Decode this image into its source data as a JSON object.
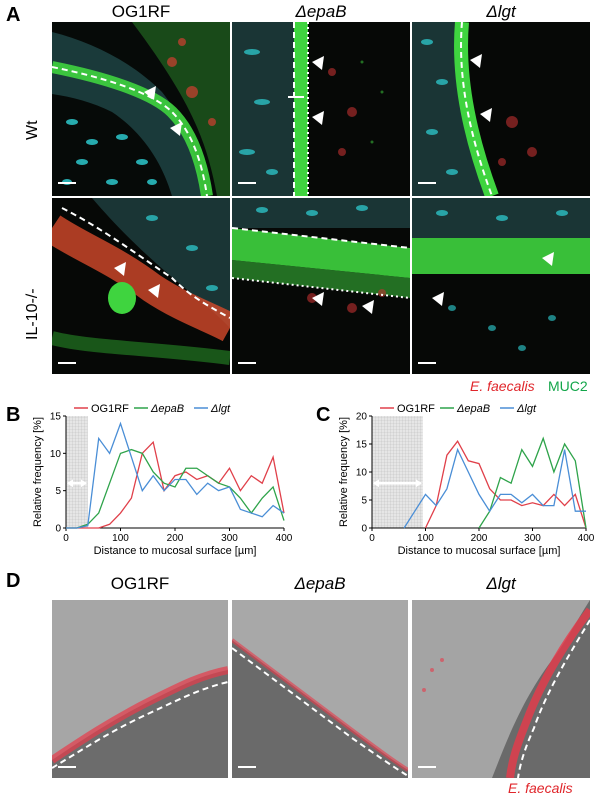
{
  "panelA": {
    "letter": "A",
    "columns": [
      "OG1RF",
      "ΔepaB",
      "Δlgt"
    ],
    "rows": [
      "Wt",
      "IL-10-/-"
    ],
    "legend": {
      "label1": "E. faecalis",
      "label2": "MUC2",
      "color1": "#e0262b",
      "color2": "#13a64a"
    }
  },
  "panelB": {
    "letter": "B"
  },
  "panelC": {
    "letter": "C"
  },
  "panelD": {
    "letter": "D",
    "columns": [
      "OG1RF",
      "ΔepaB",
      "Δlgt"
    ],
    "legend": "E. faecalis"
  },
  "chart_data": [
    {
      "type": "line",
      "xlabel": "Distance to mucosal surface [µm]",
      "ylabel": "Relative frequency [%]",
      "xlim": [
        0,
        400
      ],
      "ylim": [
        0,
        15
      ],
      "xticks": [
        0,
        100,
        200,
        300,
        400
      ],
      "yticks": [
        0,
        5,
        10,
        15
      ],
      "legend_position": "top",
      "shaded_region": [
        0,
        40
      ],
      "series": [
        {
          "name": "OG1RF",
          "color": "#e0404a",
          "x": [
            0,
            20,
            40,
            60,
            80,
            100,
            120,
            140,
            160,
            180,
            200,
            220,
            240,
            260,
            280,
            300,
            320,
            340,
            360,
            380,
            400
          ],
          "y": [
            0,
            0,
            0,
            0,
            0.5,
            2,
            4,
            10,
            11.5,
            5,
            7,
            7.5,
            6.5,
            7,
            6,
            8,
            5,
            7,
            6,
            9.5,
            2
          ]
        },
        {
          "name": "ΔepaB",
          "color": "#2ea34a",
          "x": [
            0,
            20,
            40,
            60,
            80,
            100,
            120,
            140,
            160,
            180,
            200,
            220,
            240,
            260,
            280,
            300,
            320,
            340,
            360,
            380,
            400
          ],
          "y": [
            0,
            0,
            0.5,
            2,
            6,
            10,
            10.5,
            10,
            7.5,
            6,
            5.5,
            8,
            8,
            7,
            6,
            5.5,
            4,
            2,
            4,
            5.5,
            1
          ]
        },
        {
          "name": "Δlgt",
          "color": "#4a8ed6",
          "x": [
            0,
            20,
            40,
            60,
            80,
            100,
            120,
            140,
            160,
            180,
            200,
            220,
            240,
            260,
            280,
            300,
            320,
            340,
            360,
            380,
            400
          ],
          "y": [
            0,
            0,
            0.3,
            12,
            10,
            14,
            9.5,
            5,
            7,
            5,
            6.5,
            6.5,
            4.5,
            6,
            5,
            5.5,
            2.5,
            2,
            1.5,
            3,
            2
          ]
        }
      ]
    },
    {
      "type": "line",
      "xlabel": "Distance to mucosal surface [µm]",
      "ylabel": "Relative frequency [%]",
      "xlim": [
        0,
        400
      ],
      "ylim": [
        0,
        20
      ],
      "xticks": [
        0,
        100,
        200,
        300,
        400
      ],
      "yticks": [
        0,
        5,
        10,
        15,
        20
      ],
      "legend_position": "top",
      "shaded_region": [
        0,
        95
      ],
      "series": [
        {
          "name": "OG1RF",
          "color": "#e0404a",
          "x": [
            100,
            120,
            140,
            160,
            180,
            200,
            220,
            240,
            260,
            280,
            300,
            320,
            340,
            360,
            380,
            400
          ],
          "y": [
            0,
            4,
            13,
            15.5,
            12,
            11.5,
            7,
            5,
            5,
            4,
            4.5,
            4,
            6,
            4,
            6,
            0
          ]
        },
        {
          "name": "ΔepaB",
          "color": "#2ea34a",
          "x": [
            200,
            220,
            240,
            260,
            280,
            300,
            320,
            340,
            360,
            380,
            400
          ],
          "y": [
            0,
            3,
            9,
            8,
            14,
            11,
            16,
            10,
            15,
            12,
            0
          ]
        },
        {
          "name": "Δlgt",
          "color": "#4a8ed6",
          "x": [
            60,
            80,
            100,
            120,
            140,
            160,
            180,
            200,
            220,
            240,
            260,
            280,
            300,
            320,
            340,
            360,
            380,
            400
          ],
          "y": [
            0,
            3,
            6,
            4,
            7,
            14,
            10,
            6,
            3,
            6,
            6,
            4.5,
            6,
            4,
            4,
            14,
            3,
            3
          ]
        }
      ]
    }
  ]
}
